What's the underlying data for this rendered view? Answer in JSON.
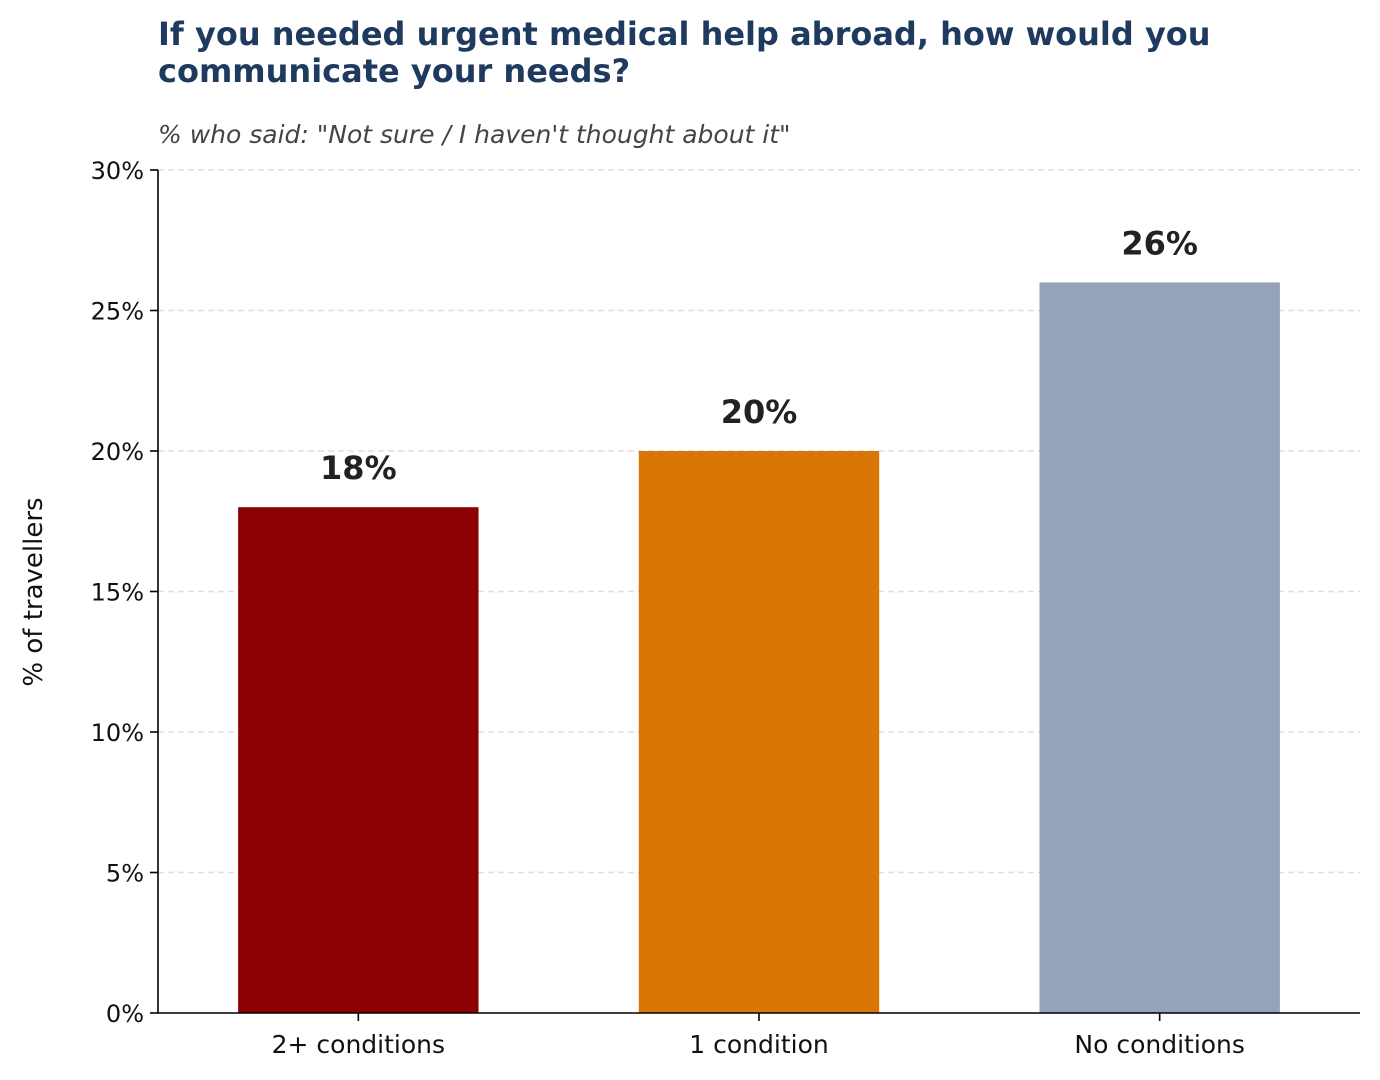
{
  "chart_data": {
    "type": "bar",
    "title": "If you needed urgent medical help abroad, how would you communicate your needs?",
    "subtitle": "% who said: \"Not sure / I haven't thought about it\"",
    "xlabel": "",
    "ylabel": "% of travellers",
    "categories": [
      "2+ conditions",
      "1 condition",
      "No conditions"
    ],
    "values": [
      18,
      20,
      26
    ],
    "value_labels": [
      "18%",
      "20%",
      "26%"
    ],
    "bar_colors": [
      "#8b0000",
      "#d97706",
      "#94a3b8"
    ],
    "ylim": [
      0,
      30
    ],
    "yticks": [
      0,
      5,
      10,
      15,
      20,
      25,
      30
    ],
    "ytick_labels": [
      "0%",
      "5%",
      "10%",
      "15%",
      "20%",
      "25%",
      "30%"
    ],
    "grid": "horizontal dashed",
    "legend": "none"
  }
}
